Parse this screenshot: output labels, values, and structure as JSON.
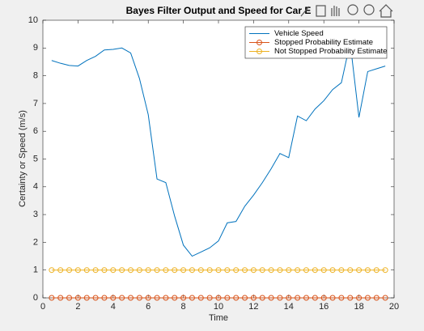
{
  "chart_data": {
    "type": "line",
    "title": "Bayes Filter Output and Speed for Car E",
    "xlabel": "Time",
    "ylabel": "Certainty or Speed (m/s)",
    "x": [
      0.5,
      1,
      1.5,
      2,
      2.5,
      3,
      3.5,
      4,
      4.5,
      5,
      5.5,
      6,
      6.5,
      7,
      7.5,
      8,
      8.5,
      9,
      9.5,
      10,
      10.5,
      11,
      11.5,
      12,
      12.5,
      13,
      13.5,
      14,
      14.5,
      15,
      15.5,
      16,
      16.5,
      17,
      17.5,
      18,
      18.5,
      19,
      19.5
    ],
    "series": [
      {
        "name": "Vehicle Speed",
        "color": "#0072bd",
        "marker": "none",
        "values": [
          8.55,
          8.45,
          8.37,
          8.35,
          8.55,
          8.7,
          8.93,
          8.95,
          9.0,
          8.82,
          7.9,
          6.6,
          4.28,
          4.15,
          2.95,
          1.9,
          1.5,
          1.65,
          1.8,
          2.05,
          2.7,
          2.75,
          3.3,
          3.7,
          4.15,
          4.65,
          5.2,
          5.05,
          6.55,
          6.38,
          6.8,
          7.1,
          7.5,
          7.75,
          9.2,
          6.5,
          8.15,
          8.25,
          8.35
        ]
      },
      {
        "name": "Stopped Probability Estimate",
        "color": "#d95319",
        "marker": "o",
        "values": [
          0,
          0,
          0,
          0,
          0,
          0,
          0,
          0,
          0,
          0,
          0,
          0,
          0,
          0,
          0,
          0,
          0,
          0,
          0,
          0,
          0,
          0,
          0,
          0,
          0,
          0,
          0,
          0,
          0,
          0,
          0,
          0,
          0,
          0,
          0,
          0,
          0,
          0,
          0
        ]
      },
      {
        "name": "Not Stopped Probability Estimate",
        "color": "#edb120",
        "marker": "o",
        "values": [
          1,
          1,
          1,
          1,
          1,
          1,
          1,
          1,
          1,
          1,
          1,
          1,
          1,
          1,
          1,
          1,
          1,
          1,
          1,
          1,
          1,
          1,
          1,
          1,
          1,
          1,
          1,
          1,
          1,
          1,
          1,
          1,
          1,
          1,
          1,
          1,
          1,
          1,
          1
        ]
      }
    ],
    "xlim": [
      0,
      20
    ],
    "xticks": [
      0,
      2,
      4,
      6,
      8,
      10,
      12,
      14,
      16,
      18,
      20
    ],
    "ylim": [
      0,
      10
    ],
    "yticks": [
      0,
      1,
      2,
      3,
      4,
      5,
      6,
      7,
      8,
      9,
      10
    ],
    "grid": false,
    "legend": "northeast"
  }
}
